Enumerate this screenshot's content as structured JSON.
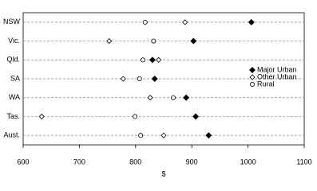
{
  "chart_data": {
    "type": "dot",
    "x_label": "$",
    "categories": [
      "NSW",
      "Vic.",
      "Qld.",
      "SA",
      "WA",
      "Tas.",
      "Aust."
    ],
    "series": [
      {
        "name": "Major Urban",
        "color": "#000000",
        "marker": "filled-diamond",
        "values": [
          1006,
          903,
          830,
          834,
          890,
          907,
          930
        ]
      },
      {
        "name": "Other Urban",
        "color": "#000000",
        "marker": "open-diamond",
        "values": [
          888,
          753,
          841,
          778,
          826,
          633,
          850
        ]
      },
      {
        "name": "Rural",
        "color": "#000000",
        "marker": "open-circle",
        "values": [
          817,
          832,
          813,
          807,
          867,
          799,
          809
        ]
      }
    ],
    "xlim": [
      600,
      1100
    ],
    "xticks": [
      600,
      700,
      800,
      900,
      1000,
      1100
    ],
    "grid": true,
    "legend": "right"
  }
}
